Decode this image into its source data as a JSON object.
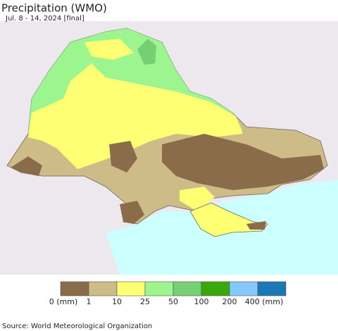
{
  "header": {
    "title": "Precipitation (WMO)",
    "subtitle": "Jul. 8 - 14, 2024 [final]"
  },
  "legend": {
    "colors": [
      "#8b6c4a",
      "#cdbb88",
      "#ffff73",
      "#9cf58e",
      "#76cf72",
      "#3aa80a",
      "#86c8fb",
      "#1a78b6"
    ],
    "labels": [
      "0 (mm)",
      "1",
      "10",
      "25",
      "50",
      "100",
      "200",
      "400 (mm)"
    ]
  },
  "footer": {
    "source": "Source: World Meteorological Organization"
  }
}
